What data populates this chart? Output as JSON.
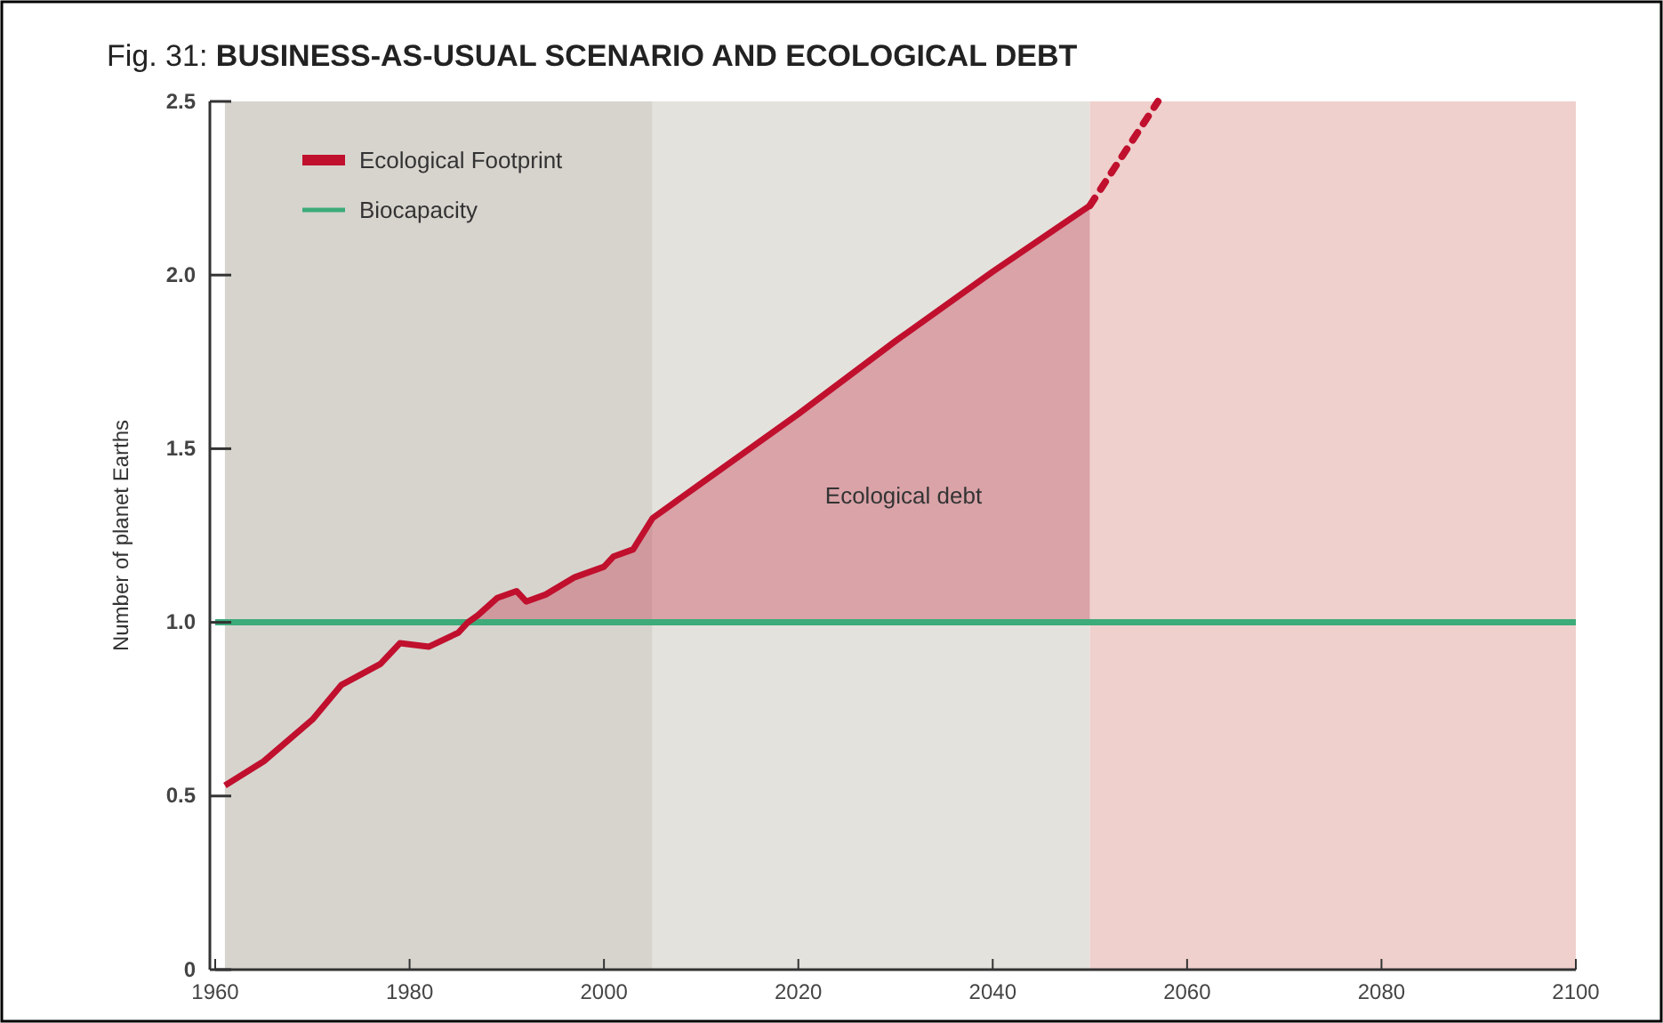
{
  "chart_data": {
    "type": "line",
    "title": "Fig. 31: BUSINESS-AS-USUAL SCENARIO AND ECOLOGICAL DEBT",
    "ylabel": "Number of planet Earths",
    "xlim": [
      1960,
      2100
    ],
    "xticks": [
      1960,
      1980,
      2000,
      2020,
      2040,
      2060,
      2080,
      2100
    ],
    "ylim": [
      0,
      2.5
    ],
    "yticks": [
      0,
      0.5,
      {
        "value": 1,
        "label": "1.0"
      },
      1.5,
      {
        "value": 2,
        "label": "2.0"
      },
      2.5
    ],
    "grid": false,
    "legend": "top left",
    "bands": [
      {
        "axis": "x",
        "from": 1961,
        "to": 2005,
        "color": "#d7d4ce"
      },
      {
        "axis": "x",
        "from": 2005,
        "to": 2050,
        "color": "#e4e2dd"
      },
      {
        "axis": "x",
        "from": 2050,
        "to": 2100,
        "color": "#efd0cd"
      }
    ],
    "series": [
      {
        "name": "Biocapacity",
        "color": "#3dab7a",
        "x": [
          1960,
          2100
        ],
        "values": [
          1,
          1
        ]
      },
      {
        "name": "Ecological Footprint",
        "color": "#c0102e",
        "x": [
          1961,
          1965,
          1970,
          1973,
          1975,
          1977,
          1979,
          1982,
          1985,
          1986,
          1987,
          1989,
          1991,
          1992,
          1994,
          1997,
          2000,
          2001,
          2003,
          2005,
          2010,
          2020,
          2030,
          2040,
          2050
        ],
        "values": [
          0.53,
          0.6,
          0.72,
          0.82,
          0.85,
          0.88,
          0.94,
          0.93,
          0.97,
          1,
          1.02,
          1.07,
          1.09,
          1.06,
          1.08,
          1.13,
          1.16,
          1.19,
          1.21,
          1.3,
          1.4,
          1.6,
          1.81,
          2.01,
          2.2
        ],
        "lower": [
          null,
          null,
          null,
          null,
          null,
          null,
          null,
          null,
          null,
          1,
          1,
          1,
          1,
          1,
          1,
          1,
          1,
          1,
          1,
          1,
          1,
          1,
          1,
          1,
          1
        ],
        "upper": [
          null,
          null,
          null,
          null,
          null,
          null,
          null,
          null,
          null,
          1,
          1.02,
          1.07,
          1.09,
          1.06,
          1.08,
          1.13,
          1.16,
          1.19,
          1.21,
          1.3,
          1.4,
          1.6,
          1.81,
          2.01,
          2.2
        ]
      },
      {
        "color": "#c0102e",
        "line_style": "dotted",
        "x": [
          2050,
          2057
        ],
        "values": [
          2.2,
          2.5
        ]
      }
    ],
    "annotations": [
      "Ecological debt"
    ]
  }
}
